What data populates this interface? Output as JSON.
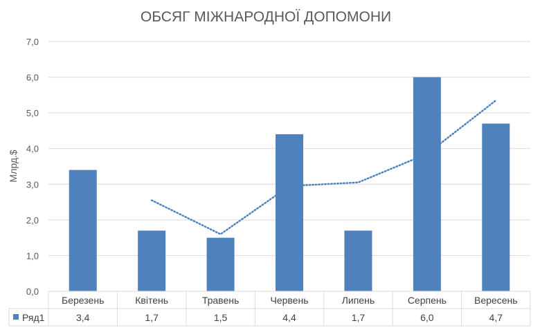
{
  "chart_data": {
    "type": "bar",
    "title": "ОБСЯГ МІЖНАРОДНОЇ ДОПОМОНИ",
    "xlabel": "",
    "ylabel": "Млрд.$",
    "ylim": [
      0,
      7
    ],
    "yticks": [
      "0,0",
      "1,0",
      "2,0",
      "3,0",
      "4,0",
      "5,0",
      "6,0",
      "7,0"
    ],
    "grid": true,
    "categories": [
      "Березень",
      "Квітень",
      "Травень",
      "Червень",
      "Липень",
      "Серпень",
      "Вересень"
    ],
    "series": [
      {
        "name": "Ряд1",
        "values": [
          3.4,
          1.7,
          1.5,
          4.4,
          1.7,
          6.0,
          4.7
        ],
        "value_labels": [
          "3,4",
          "1,7",
          "1,5",
          "4,4",
          "1,7",
          "6,0",
          "4,7"
        ],
        "color": "#4f81bd"
      }
    ],
    "trendline": {
      "type": "moving-average",
      "period": 2,
      "style": "dotted",
      "color": "#4f81bd",
      "values": [
        null,
        2.55,
        1.6,
        2.95,
        3.05,
        3.85,
        5.35
      ]
    },
    "data_table": true,
    "legend": "data-table"
  }
}
